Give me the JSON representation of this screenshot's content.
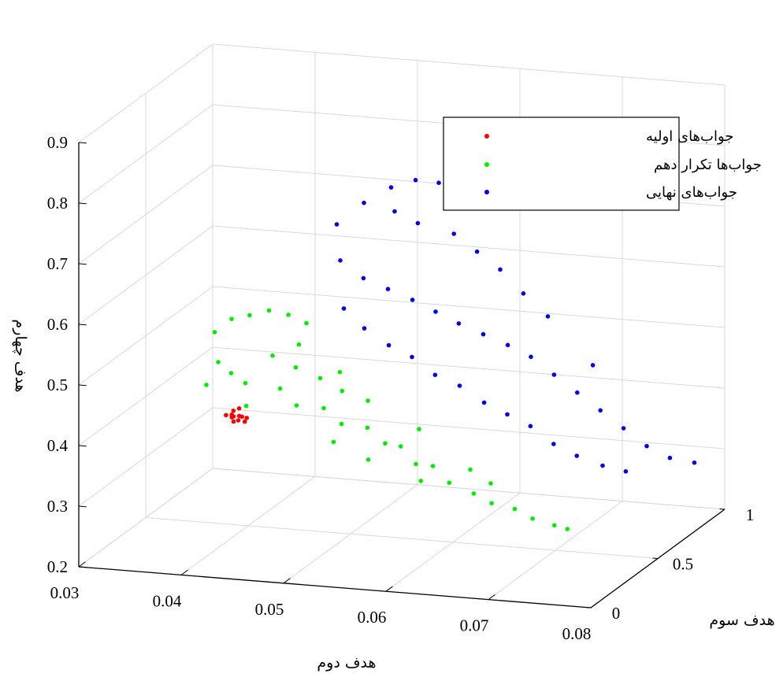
{
  "chart_data": {
    "type": "scatter",
    "dimensions": 3,
    "xlabel": "هدف دوم",
    "ylabel": "هدف سوم",
    "zlabel": "هدف چهارم",
    "xlim": [
      0.03,
      0.08
    ],
    "ylim": [
      0,
      1
    ],
    "zlim": [
      0.2,
      0.9
    ],
    "x_ticks": [
      "0.03",
      "0.04",
      "0.05",
      "0.06",
      "0.07",
      "0.08"
    ],
    "y_ticks": [
      "0",
      "0.5",
      "1"
    ],
    "z_ticks": [
      "0.2",
      "0.3",
      "0.4",
      "0.5",
      "0.6",
      "0.7",
      "0.8",
      "0.9"
    ],
    "grid": true,
    "legend_position": "top-right",
    "series": [
      {
        "name": "جواب‌های اولیه",
        "color": "#ff0000",
        "points": [
          [
            0.0415,
            0.22,
            0.43
          ],
          [
            0.0418,
            0.24,
            0.428
          ],
          [
            0.0421,
            0.23,
            0.427
          ],
          [
            0.0424,
            0.25,
            0.425
          ],
          [
            0.0427,
            0.22,
            0.423
          ],
          [
            0.043,
            0.26,
            0.421
          ],
          [
            0.042,
            0.28,
            0.432
          ],
          [
            0.0425,
            0.2,
            0.424
          ],
          [
            0.0417,
            0.26,
            0.431
          ],
          [
            0.0428,
            0.24,
            0.426
          ],
          [
            0.0422,
            0.21,
            0.429
          ],
          [
            0.0432,
            0.23,
            0.42
          ]
        ]
      },
      {
        "name": "جواب‌ها تکرار دهم",
        "color": "#00ee00",
        "points": [
          [
            0.04,
            0.25,
            0.56
          ],
          [
            0.041,
            0.3,
            0.575
          ],
          [
            0.0425,
            0.32,
            0.58
          ],
          [
            0.044,
            0.35,
            0.585
          ],
          [
            0.0455,
            0.38,
            0.575
          ],
          [
            0.047,
            0.4,
            0.56
          ],
          [
            0.041,
            0.2,
            0.52
          ],
          [
            0.042,
            0.22,
            0.5
          ],
          [
            0.043,
            0.25,
            0.48
          ],
          [
            0.0405,
            0.15,
            0.49
          ],
          [
            0.045,
            0.3,
            0.52
          ],
          [
            0.047,
            0.32,
            0.5
          ],
          [
            0.046,
            0.28,
            0.47
          ],
          [
            0.049,
            0.35,
            0.48
          ],
          [
            0.044,
            0.18,
            0.455
          ],
          [
            0.048,
            0.25,
            0.45
          ],
          [
            0.05,
            0.3,
            0.44
          ],
          [
            0.051,
            0.36,
            0.46
          ],
          [
            0.052,
            0.28,
            0.42
          ],
          [
            0.054,
            0.32,
            0.41
          ],
          [
            0.056,
            0.3,
            0.39
          ],
          [
            0.057,
            0.34,
            0.38
          ],
          [
            0.059,
            0.3,
            0.36
          ],
          [
            0.06,
            0.35,
            0.35
          ],
          [
            0.062,
            0.32,
            0.33
          ],
          [
            0.064,
            0.35,
            0.31
          ],
          [
            0.066,
            0.33,
            0.3
          ],
          [
            0.068,
            0.35,
            0.29
          ],
          [
            0.07,
            0.33,
            0.28
          ],
          [
            0.072,
            0.34,
            0.27
          ],
          [
            0.073,
            0.36,
            0.262
          ],
          [
            0.06,
            0.26,
            0.34
          ],
          [
            0.055,
            0.25,
            0.37
          ],
          [
            0.058,
            0.4,
            0.4
          ],
          [
            0.053,
            0.4,
            0.44
          ],
          [
            0.05,
            0.42,
            0.48
          ],
          [
            0.046,
            0.42,
            0.52
          ],
          [
            0.063,
            0.4,
            0.34
          ],
          [
            0.065,
            0.4,
            0.32
          ],
          [
            0.052,
            0.22,
            0.4
          ]
        ]
      },
      {
        "name": "جواب‌های نهایی",
        "color": "#0000ee",
        "points": [
          [
            0.048,
            0.55,
            0.7
          ],
          [
            0.05,
            0.6,
            0.73
          ],
          [
            0.052,
            0.65,
            0.75
          ],
          [
            0.054,
            0.68,
            0.76
          ],
          [
            0.056,
            0.7,
            0.755
          ],
          [
            0.058,
            0.72,
            0.74
          ],
          [
            0.06,
            0.75,
            0.73
          ],
          [
            0.049,
            0.5,
            0.65
          ],
          [
            0.051,
            0.52,
            0.62
          ],
          [
            0.053,
            0.55,
            0.6
          ],
          [
            0.055,
            0.58,
            0.58
          ],
          [
            0.057,
            0.6,
            0.56
          ],
          [
            0.059,
            0.62,
            0.54
          ],
          [
            0.061,
            0.65,
            0.52
          ],
          [
            0.063,
            0.68,
            0.5
          ],
          [
            0.065,
            0.7,
            0.48
          ],
          [
            0.067,
            0.72,
            0.45
          ],
          [
            0.069,
            0.74,
            0.42
          ],
          [
            0.071,
            0.76,
            0.39
          ],
          [
            0.073,
            0.78,
            0.36
          ],
          [
            0.075,
            0.8,
            0.33
          ],
          [
            0.077,
            0.82,
            0.31
          ],
          [
            0.079,
            0.85,
            0.3
          ],
          [
            0.056,
            0.5,
            0.5
          ],
          [
            0.058,
            0.52,
            0.47
          ],
          [
            0.06,
            0.55,
            0.45
          ],
          [
            0.062,
            0.58,
            0.42
          ],
          [
            0.064,
            0.6,
            0.4
          ],
          [
            0.066,
            0.62,
            0.38
          ],
          [
            0.068,
            0.64,
            0.35
          ],
          [
            0.07,
            0.66,
            0.33
          ],
          [
            0.072,
            0.7,
            0.31
          ],
          [
            0.074,
            0.72,
            0.3
          ],
          [
            0.052,
            0.45,
            0.55
          ],
          [
            0.054,
            0.48,
            0.52
          ],
          [
            0.05,
            0.45,
            0.58
          ],
          [
            0.062,
            0.7,
            0.62
          ],
          [
            0.06,
            0.68,
            0.65
          ],
          [
            0.058,
            0.66,
            0.68
          ],
          [
            0.064,
            0.72,
            0.58
          ],
          [
            0.066,
            0.75,
            0.54
          ],
          [
            0.07,
            0.78,
            0.46
          ],
          [
            0.055,
            0.62,
            0.7
          ],
          [
            0.053,
            0.6,
            0.72
          ]
        ]
      }
    ]
  }
}
